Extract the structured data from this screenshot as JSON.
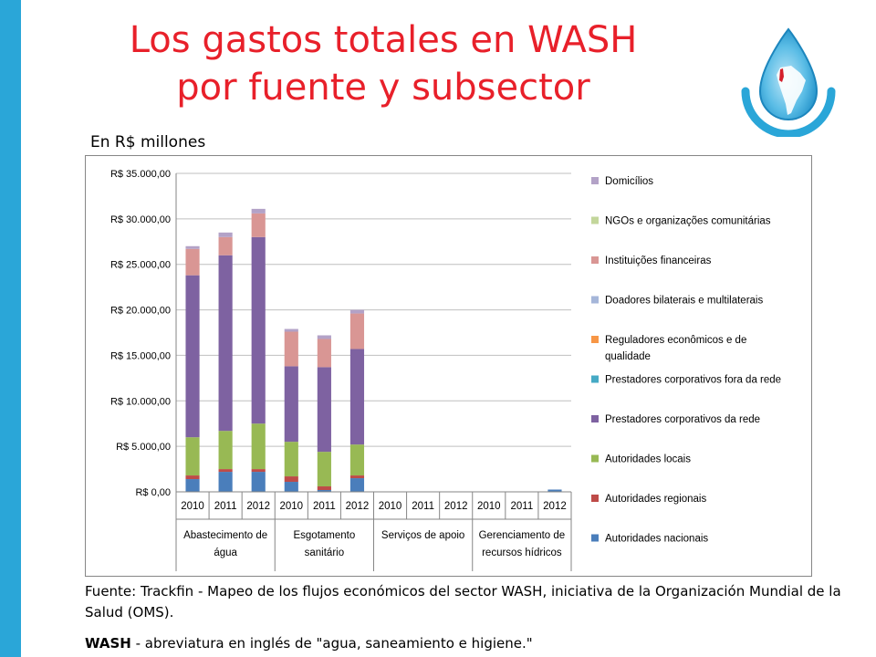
{
  "slide": {
    "title_line1": "Los gastos totales en WASH",
    "title_line2": "por fuente y subsector",
    "units": "En R$ millones",
    "source": "Fuente: Trackfin - Mapeo de los flujos económicos del sector WASH, iniciativa de la Organización Mundial de la Salud (OMS).",
    "note_term": "WASH",
    "note_text": " - abreviatura en inglés de \"agua, saneamiento e higiene.\""
  },
  "colors": {
    "left_bar": "#2aa6d8",
    "title": "#e8202a"
  },
  "chart_data": {
    "type": "bar",
    "stacked": true,
    "ylim": [
      0,
      35000
    ],
    "yticks": [
      0,
      5000,
      10000,
      15000,
      20000,
      25000,
      30000,
      35000
    ],
    "ytick_labels": [
      "R$ 0,00",
      "R$ 5.000,00",
      "R$ 10.000,00",
      "R$ 15.000,00",
      "R$ 20.000,00",
      "R$ 25.000,00",
      "R$ 30.000,00",
      "R$ 35.000,00"
    ],
    "grid": true,
    "legend_position": "right",
    "categories": [
      "2010",
      "2011",
      "2012",
      "2010",
      "2011",
      "2012",
      "2010",
      "2011",
      "2012",
      "2010",
      "2011",
      "2012"
    ],
    "groups": [
      {
        "label_lines": [
          "Abastecimento de",
          "água"
        ],
        "span": 3
      },
      {
        "label_lines": [
          "Esgotamento",
          "sanitário"
        ],
        "span": 3
      },
      {
        "label_lines": [
          "Serviços de apoio"
        ],
        "span": 3
      },
      {
        "label_lines": [
          "Gerenciamento de",
          "recursos hídricos"
        ],
        "span": 3
      }
    ],
    "series": [
      {
        "name": "Autoridades nacionais",
        "color": "#4a7ebb",
        "values": [
          1400,
          2200,
          2200,
          1100,
          200,
          1500,
          0,
          0,
          0,
          0,
          0,
          250
        ]
      },
      {
        "name": "Autoridades regionais",
        "color": "#be4b48",
        "values": [
          400,
          300,
          300,
          600,
          400,
          300,
          0,
          0,
          0,
          0,
          0,
          0
        ]
      },
      {
        "name": "Autoridades locais",
        "color": "#98b954",
        "values": [
          4200,
          4200,
          5000,
          3800,
          3800,
          3400,
          0,
          0,
          0,
          0,
          0,
          0
        ]
      },
      {
        "name": "Prestadores corporativos da rede",
        "color": "#7e62a1",
        "values": [
          17800,
          19300,
          20500,
          8300,
          9300,
          10500,
          0,
          0,
          0,
          0,
          0,
          0
        ]
      },
      {
        "name": "Prestadores corporativos fora da rede",
        "color": "#46aac5",
        "values": [
          0,
          0,
          0,
          0,
          0,
          0,
          0,
          0,
          0,
          0,
          0,
          0
        ]
      },
      {
        "name": "Reguladores econômicos e de qualidade",
        "color": "#f79646",
        "values": [
          0,
          0,
          0,
          0,
          0,
          0,
          0,
          0,
          0,
          0,
          0,
          0
        ]
      },
      {
        "name": "Doadores bilaterais e multilaterais",
        "color": "#a5b6d9",
        "values": [
          0,
          0,
          0,
          0,
          0,
          0,
          0,
          0,
          0,
          0,
          0,
          0
        ]
      },
      {
        "name": "Instituições financeiras",
        "color": "#d99694",
        "values": [
          2900,
          2000,
          2600,
          3800,
          3100,
          3900,
          50,
          50,
          50,
          0,
          50,
          0
        ]
      },
      {
        "name": "NGOs e organizações comunitárias",
        "color": "#c3d69b",
        "values": [
          0,
          0,
          0,
          0,
          0,
          0,
          0,
          0,
          0,
          0,
          0,
          0
        ]
      },
      {
        "name": "Domicílios",
        "color": "#b3a2c7",
        "values": [
          300,
          500,
          500,
          300,
          400,
          400,
          0,
          0,
          0,
          0,
          0,
          0
        ]
      }
    ],
    "legend_order": [
      9,
      8,
      7,
      6,
      5,
      4,
      3,
      2,
      1,
      0
    ]
  }
}
